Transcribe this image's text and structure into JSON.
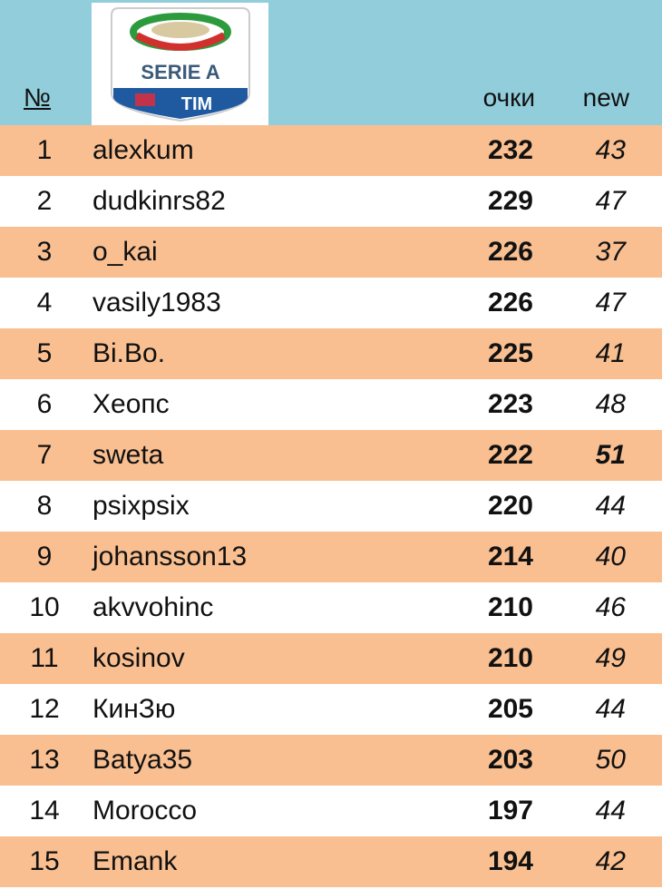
{
  "header": {
    "num_label": "№",
    "points_label": "очки",
    "new_label": "new",
    "logo": {
      "text_top": "SERIE A",
      "text_bottom": "TIM"
    }
  },
  "colors": {
    "header_bg": "#92cddc",
    "row_alt_bg": "#f9bf91",
    "row_bg": "#ffffff"
  },
  "rows": [
    {
      "pos": "1",
      "name": "alexkum",
      "points": "232",
      "new": "43"
    },
    {
      "pos": "2",
      "name": "dudkinrs82",
      "points": "229",
      "new": "47"
    },
    {
      "pos": "3",
      "name": "o_kai",
      "points": "226",
      "new": "37"
    },
    {
      "pos": "4",
      "name": "vasily1983",
      "points": "226",
      "new": "47"
    },
    {
      "pos": "5",
      "name": "Bi.Bo.",
      "points": "225",
      "new": "41"
    },
    {
      "pos": "6",
      "name": "Хеопс",
      "points": "223",
      "new": "48"
    },
    {
      "pos": "7",
      "name": "sweta",
      "points": "222",
      "new": "51",
      "highlight": true
    },
    {
      "pos": "8",
      "name": "psixpsix",
      "points": "220",
      "new": "44"
    },
    {
      "pos": "9",
      "name": "johansson13",
      "points": "214",
      "new": "40"
    },
    {
      "pos": "10",
      "name": "akvvohinc",
      "points": "210",
      "new": "46"
    },
    {
      "pos": "11",
      "name": "kosinov",
      "points": "210",
      "new": "49"
    },
    {
      "pos": "12",
      "name": "КинЗю",
      "points": "205",
      "new": "44"
    },
    {
      "pos": "13",
      "name": "Batya35",
      "points": "203",
      "new": "50"
    },
    {
      "pos": "14",
      "name": "Morocco",
      "points": "197",
      "new": "44"
    },
    {
      "pos": "15",
      "name": "Emank",
      "points": "194",
      "new": "42"
    }
  ]
}
